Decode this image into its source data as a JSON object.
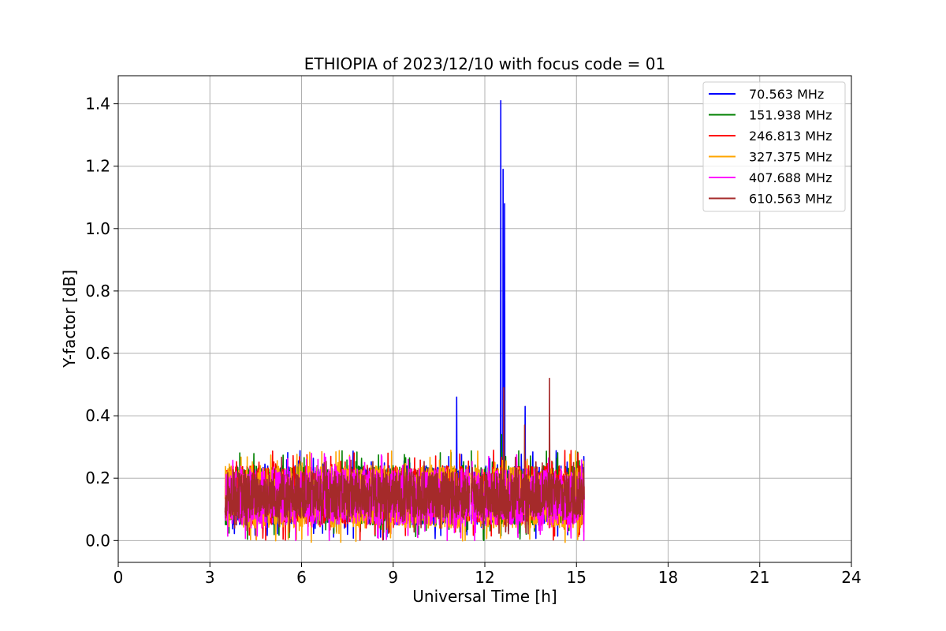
{
  "chart_data": {
    "type": "line",
    "title": "ETHIOPIA of 2023/12/10 with focus code = 01",
    "xlabel": "Universal Time [h]",
    "ylabel": "Y-factor [dB]",
    "xlim": [
      0,
      24
    ],
    "ylim": [
      -0.07,
      1.49
    ],
    "xticks": [
      0,
      3,
      6,
      9,
      12,
      15,
      18,
      21,
      24
    ],
    "xtick_labels": [
      "0",
      "3",
      "6",
      "9",
      "12",
      "15",
      "18",
      "21",
      "24"
    ],
    "yticks": [
      0.0,
      0.2,
      0.4,
      0.6,
      0.8,
      1.0,
      1.2,
      1.4
    ],
    "ytick_labels": [
      "0.0",
      "0.2",
      "0.4",
      "0.6",
      "0.8",
      "1.0",
      "1.2",
      "1.4"
    ],
    "grid": true,
    "legend_position": "top-right",
    "data_range_x": [
      3.5,
      15.25
    ],
    "gap_x": [
      11.5,
      11.55
    ],
    "series": [
      {
        "name": "70.563 MHz",
        "legend_label": "  70.563 MHz",
        "color": "#0000ff",
        "baseline": {
          "low": 0.05,
          "high": 0.24
        },
        "spikes": [
          [
            11.08,
            0.46
          ],
          [
            12.52,
            1.41
          ],
          [
            12.6,
            1.19
          ],
          [
            12.65,
            1.08
          ],
          [
            13.32,
            0.43
          ]
        ]
      },
      {
        "name": "151.938 MHz",
        "legend_label": "151.938 MHz",
        "color": "#008000",
        "baseline": {
          "low": 0.05,
          "high": 0.24
        },
        "spikes": [
          [
            12.55,
            0.34
          ]
        ]
      },
      {
        "name": "246.813 MHz",
        "legend_label": "246.813 MHz",
        "color": "#ff0000",
        "baseline": {
          "low": 0.05,
          "high": 0.24
        },
        "spikes": [
          [
            12.62,
            0.49
          ]
        ]
      },
      {
        "name": "327.375 MHz",
        "legend_label": "327.375 MHz",
        "color": "#ffa500",
        "baseline": {
          "low": 0.04,
          "high": 0.24
        },
        "spikes": []
      },
      {
        "name": "407.688 MHz",
        "legend_label": "407.688 MHz",
        "color": "#ff00ff",
        "baseline": {
          "low": 0.05,
          "high": 0.23
        },
        "spikes": []
      },
      {
        "name": "610.563 MHz",
        "legend_label": "610.563 MHz",
        "color": "#a52a2a",
        "baseline": {
          "low": 0.07,
          "high": 0.22
        },
        "spikes": [
          [
            12.62,
            0.49
          ],
          [
            13.3,
            0.37
          ],
          [
            14.12,
            0.52
          ]
        ]
      }
    ]
  }
}
